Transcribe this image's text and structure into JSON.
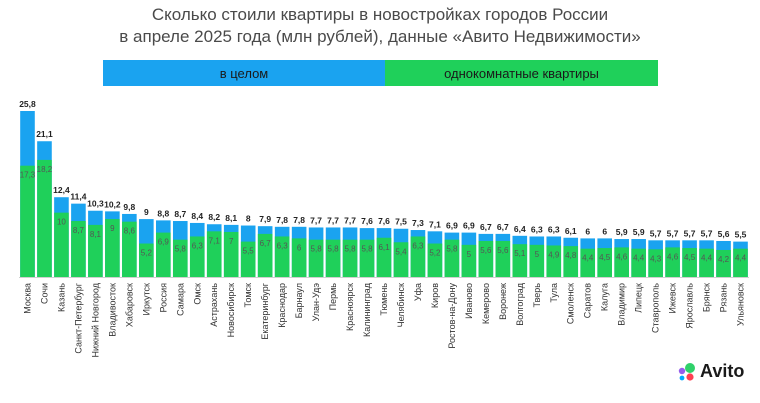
{
  "title_line1": "Сколько стоили квартиры в новостройках городов России",
  "title_line2": "в апреле 2025 года (млн рублей), данные «Авито Недвижимости»",
  "legend": {
    "all_label": "в целом",
    "one_label": "однокомнатные квартиры"
  },
  "colors": {
    "all": "#1aa3f0",
    "one": "#1fd05a",
    "label": "#333333"
  },
  "logo": {
    "text": "Avito",
    "icon": "avito-dots-icon"
  },
  "chart_data": {
    "type": "bar",
    "title": "Сколько стоили квартиры в новостройках городов России в апреле 2025 года (млн рублей), данные «Авито Недвижимости»",
    "categories": [
      "Москва",
      "Сочи",
      "Казань",
      "Санкт-Петербург",
      "Нижний Новгород",
      "Владивосток",
      "Хабаровск",
      "Иркутск",
      "Россия",
      "Самара",
      "Омск",
      "Астрахань",
      "Новосибирск",
      "Томск",
      "Екатеринбург",
      "Краснодар",
      "Барнаул",
      "Улан-Удэ",
      "Пермь",
      "Красноярск",
      "Калининград",
      "Тюмень",
      "Челябинск",
      "Уфа",
      "Киров",
      "Ростов-на-Дону",
      "Иваново",
      "Кемерово",
      "Воронеж",
      "Волгоград",
      "Тверь",
      "Тула",
      "Смоленск",
      "Саратов",
      "Калуга",
      "Владимир",
      "Липецк",
      "Ставрополь",
      "Ижевск",
      "Ярославль",
      "Брянск",
      "Рязань",
      "Ульяновск"
    ],
    "series": [
      {
        "name": "в целом",
        "values": [
          25.8,
          21.1,
          12.4,
          11.4,
          10.3,
          10.2,
          9.8,
          9,
          8.8,
          8.7,
          8.4,
          8.2,
          8.1,
          8,
          7.9,
          7.8,
          7.8,
          7.7,
          7.7,
          7.7,
          7.6,
          7.6,
          7.5,
          7.3,
          7.1,
          6.9,
          6.9,
          6.7,
          6.7,
          6.4,
          6.3,
          6.3,
          6.1,
          6,
          6,
          5.9,
          5.9,
          5.7,
          5.7,
          5.7,
          5.7,
          5.6,
          5.5
        ]
      },
      {
        "name": "однокомнатные квартиры",
        "values": [
          17.3,
          18.2,
          10,
          8.7,
          8.1,
          9,
          8.6,
          5.2,
          6.9,
          5.8,
          6.3,
          7.1,
          7,
          5.5,
          6.7,
          6.3,
          6,
          5.8,
          5.8,
          5.8,
          5.8,
          6.1,
          5.4,
          6.3,
          5.2,
          5.8,
          5,
          5.6,
          5.6,
          5.1,
          5,
          4.9,
          4.8,
          4.4,
          4.5,
          4.6,
          4.4,
          4.3,
          4.6,
          4.5,
          4.4,
          4.2,
          4.4
        ]
      }
    ],
    "legend_position": "top",
    "grid": false
  }
}
